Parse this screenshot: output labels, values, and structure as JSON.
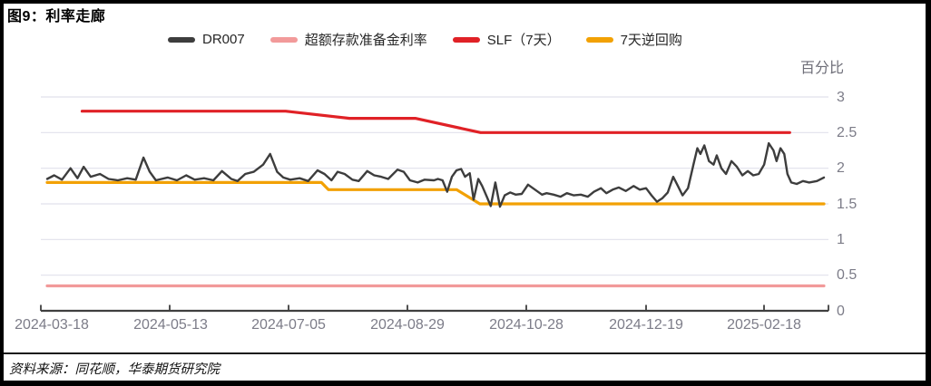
{
  "figure": {
    "title": "图9：利率走廊",
    "source_note": "资料来源：同花顺，华泰期货研究院"
  },
  "chart_data": {
    "type": "line",
    "title": "利率走廊",
    "unit_label": "百分比",
    "legend_position": "top",
    "grid": "horizontal",
    "ylim": [
      0,
      3
    ],
    "y_tick_values": [
      3,
      2.5,
      2,
      1.5,
      1,
      0.5,
      0
    ],
    "y_tick_labels": [
      "3",
      "2.5",
      "2",
      "1.5",
      "1",
      "0.5",
      "0"
    ],
    "x_tick_labels": [
      "2024-03-18",
      "2024-05-13",
      "2024-07-05",
      "2024-08-29",
      "2024-10-28",
      "2024-12-19",
      "2025-02-18"
    ],
    "series": [
      {
        "name": "DR007",
        "color": "#3d3d3d",
        "points": [
          [
            0,
            1.85
          ],
          [
            0.009,
            1.9
          ],
          [
            0.019,
            1.84
          ],
          [
            0.03,
            2.0
          ],
          [
            0.039,
            1.86
          ],
          [
            0.047,
            2.02
          ],
          [
            0.056,
            1.88
          ],
          [
            0.068,
            1.92
          ],
          [
            0.079,
            1.85
          ],
          [
            0.091,
            1.83
          ],
          [
            0.103,
            1.86
          ],
          [
            0.114,
            1.84
          ],
          [
            0.124,
            2.15
          ],
          [
            0.132,
            1.95
          ],
          [
            0.14,
            1.83
          ],
          [
            0.155,
            1.87
          ],
          [
            0.167,
            1.83
          ],
          [
            0.179,
            1.9
          ],
          [
            0.19,
            1.84
          ],
          [
            0.202,
            1.86
          ],
          [
            0.214,
            1.83
          ],
          [
            0.225,
            1.96
          ],
          [
            0.237,
            1.85
          ],
          [
            0.245,
            1.82
          ],
          [
            0.255,
            1.92
          ],
          [
            0.266,
            1.95
          ],
          [
            0.278,
            2.05
          ],
          [
            0.287,
            2.2
          ],
          [
            0.296,
            1.95
          ],
          [
            0.304,
            1.87
          ],
          [
            0.313,
            1.84
          ],
          [
            0.325,
            1.86
          ],
          [
            0.336,
            1.82
          ],
          [
            0.348,
            1.97
          ],
          [
            0.357,
            1.92
          ],
          [
            0.366,
            1.83
          ],
          [
            0.374,
            1.95
          ],
          [
            0.383,
            1.92
          ],
          [
            0.393,
            1.84
          ],
          [
            0.401,
            1.82
          ],
          [
            0.412,
            1.96
          ],
          [
            0.421,
            1.9
          ],
          [
            0.43,
            1.88
          ],
          [
            0.439,
            1.85
          ],
          [
            0.451,
            1.98
          ],
          [
            0.459,
            1.95
          ],
          [
            0.467,
            1.83
          ],
          [
            0.477,
            1.8
          ],
          [
            0.486,
            1.84
          ],
          [
            0.498,
            1.83
          ],
          [
            0.503,
            1.85
          ],
          [
            0.509,
            1.83
          ],
          [
            0.515,
            1.67
          ],
          [
            0.521,
            1.88
          ],
          [
            0.527,
            1.97
          ],
          [
            0.533,
            1.99
          ],
          [
            0.538,
            1.88
          ],
          [
            0.544,
            1.93
          ],
          [
            0.549,
            1.56
          ],
          [
            0.555,
            1.85
          ],
          [
            0.56,
            1.75
          ],
          [
            0.566,
            1.6
          ],
          [
            0.571,
            1.47
          ],
          [
            0.577,
            1.8
          ],
          [
            0.583,
            1.46
          ],
          [
            0.589,
            1.62
          ],
          [
            0.596,
            1.66
          ],
          [
            0.603,
            1.63
          ],
          [
            0.611,
            1.64
          ],
          [
            0.619,
            1.77
          ],
          [
            0.628,
            1.7
          ],
          [
            0.637,
            1.63
          ],
          [
            0.643,
            1.65
          ],
          [
            0.652,
            1.63
          ],
          [
            0.661,
            1.6
          ],
          [
            0.669,
            1.65
          ],
          [
            0.678,
            1.62
          ],
          [
            0.687,
            1.63
          ],
          [
            0.696,
            1.6
          ],
          [
            0.704,
            1.67
          ],
          [
            0.713,
            1.72
          ],
          [
            0.72,
            1.65
          ],
          [
            0.728,
            1.7
          ],
          [
            0.736,
            1.73
          ],
          [
            0.745,
            1.68
          ],
          [
            0.755,
            1.75
          ],
          [
            0.763,
            1.7
          ],
          [
            0.771,
            1.72
          ],
          [
            0.778,
            1.62
          ],
          [
            0.785,
            1.53
          ],
          [
            0.792,
            1.58
          ],
          [
            0.799,
            1.66
          ],
          [
            0.806,
            1.88
          ],
          [
            0.812,
            1.75
          ],
          [
            0.818,
            1.62
          ],
          [
            0.825,
            1.72
          ],
          [
            0.832,
            2.05
          ],
          [
            0.837,
            2.28
          ],
          [
            0.841,
            2.2
          ],
          [
            0.846,
            2.32
          ],
          [
            0.852,
            2.1
          ],
          [
            0.858,
            2.05
          ],
          [
            0.862,
            2.18
          ],
          [
            0.868,
            2.0
          ],
          [
            0.874,
            1.92
          ],
          [
            0.881,
            2.1
          ],
          [
            0.888,
            2.02
          ],
          [
            0.895,
            1.9
          ],
          [
            0.902,
            1.96
          ],
          [
            0.909,
            1.9
          ],
          [
            0.916,
            1.92
          ],
          [
            0.923,
            2.05
          ],
          [
            0.929,
            2.35
          ],
          [
            0.935,
            2.25
          ],
          [
            0.939,
            2.1
          ],
          [
            0.944,
            2.28
          ],
          [
            0.949,
            2.2
          ],
          [
            0.953,
            1.92
          ],
          [
            0.958,
            1.8
          ],
          [
            0.965,
            1.78
          ],
          [
            0.973,
            1.82
          ],
          [
            0.981,
            1.8
          ],
          [
            0.991,
            1.82
          ],
          [
            1,
            1.87
          ]
        ]
      },
      {
        "name": "超额存款准备金利率",
        "color": "#f29a9a",
        "points": [
          [
            0,
            0.35
          ],
          [
            1,
            0.35
          ]
        ]
      },
      {
        "name": "SLF（7天）",
        "color": "#e02126",
        "points": [
          [
            0.045,
            2.8
          ],
          [
            0.307,
            2.8
          ],
          [
            0.389,
            2.7
          ],
          [
            0.474,
            2.7
          ],
          [
            0.558,
            2.5
          ],
          [
            0.956,
            2.5
          ]
        ]
      },
      {
        "name": "7天逆回购",
        "color": "#f2a104",
        "points": [
          [
            0,
            1.8
          ],
          [
            0.353,
            1.8
          ],
          [
            0.362,
            1.7
          ],
          [
            0.527,
            1.7
          ],
          [
            0.557,
            1.5
          ],
          [
            1,
            1.5
          ]
        ]
      }
    ],
    "draw_order": [
      1,
      2,
      3,
      0
    ]
  }
}
